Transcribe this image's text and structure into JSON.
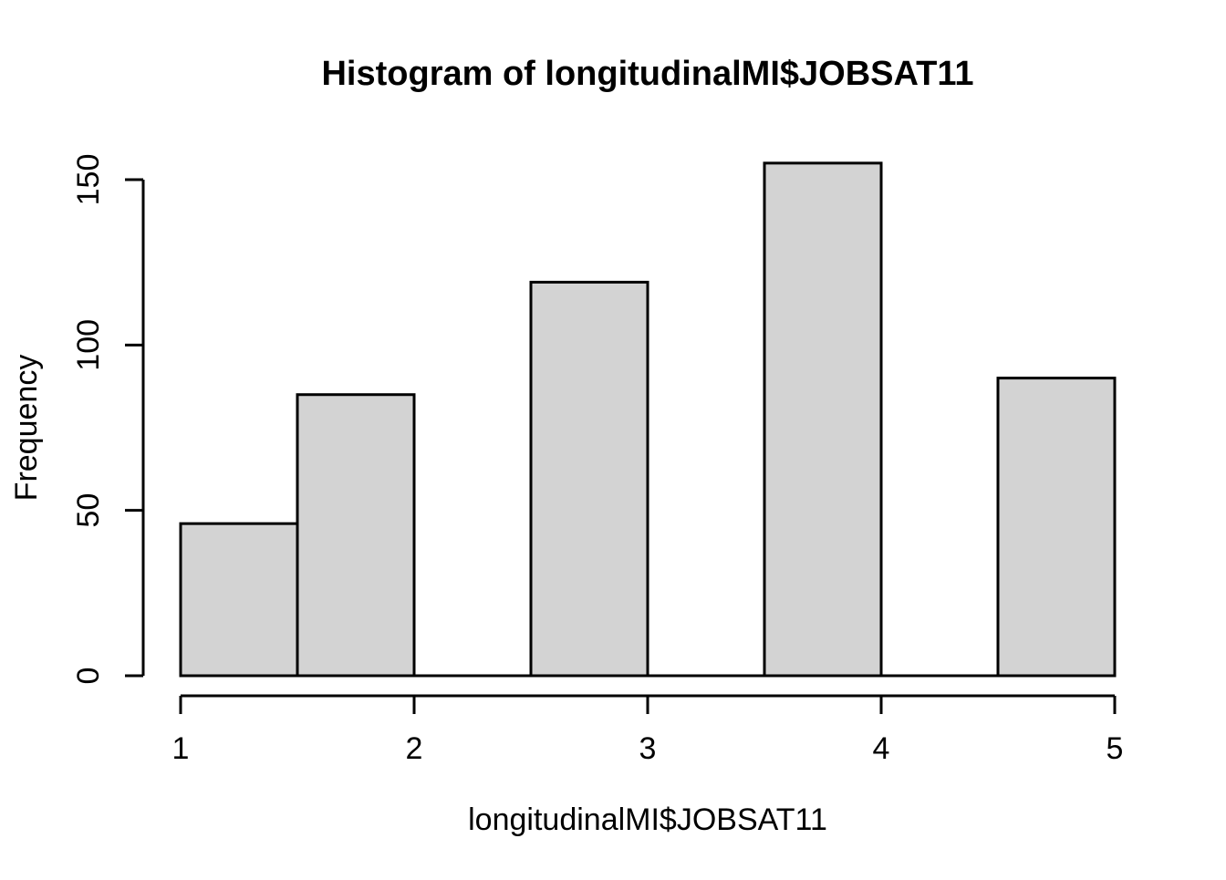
{
  "chart_data": {
    "type": "bar",
    "subtype": "histogram",
    "title": "Histogram of longitudinalMI$JOBSAT11",
    "xlabel": "longitudinalMI$JOBSAT11",
    "ylabel": "Frequency",
    "breaks": [
      1,
      1.5,
      2,
      2.5,
      3,
      3.5,
      4,
      4.5,
      5
    ],
    "counts": [
      46,
      85,
      0,
      119,
      0,
      155,
      0,
      90
    ],
    "xticks": [
      "1",
      "2",
      "3",
      "4",
      "5"
    ],
    "yticks": [
      "0",
      "50",
      "100",
      "150"
    ],
    "xtick_values": [
      1,
      2,
      3,
      4,
      5
    ],
    "ytick_values": [
      0,
      50,
      100,
      150
    ],
    "xlim": [
      1,
      5
    ],
    "ylim": [
      0,
      155
    ],
    "grid": false,
    "legend": null,
    "colors": {
      "bar_fill": "#d3d3d3",
      "bar_border": "#000000",
      "axis": "#000000",
      "text": "#000000",
      "background": "#ffffff"
    }
  }
}
